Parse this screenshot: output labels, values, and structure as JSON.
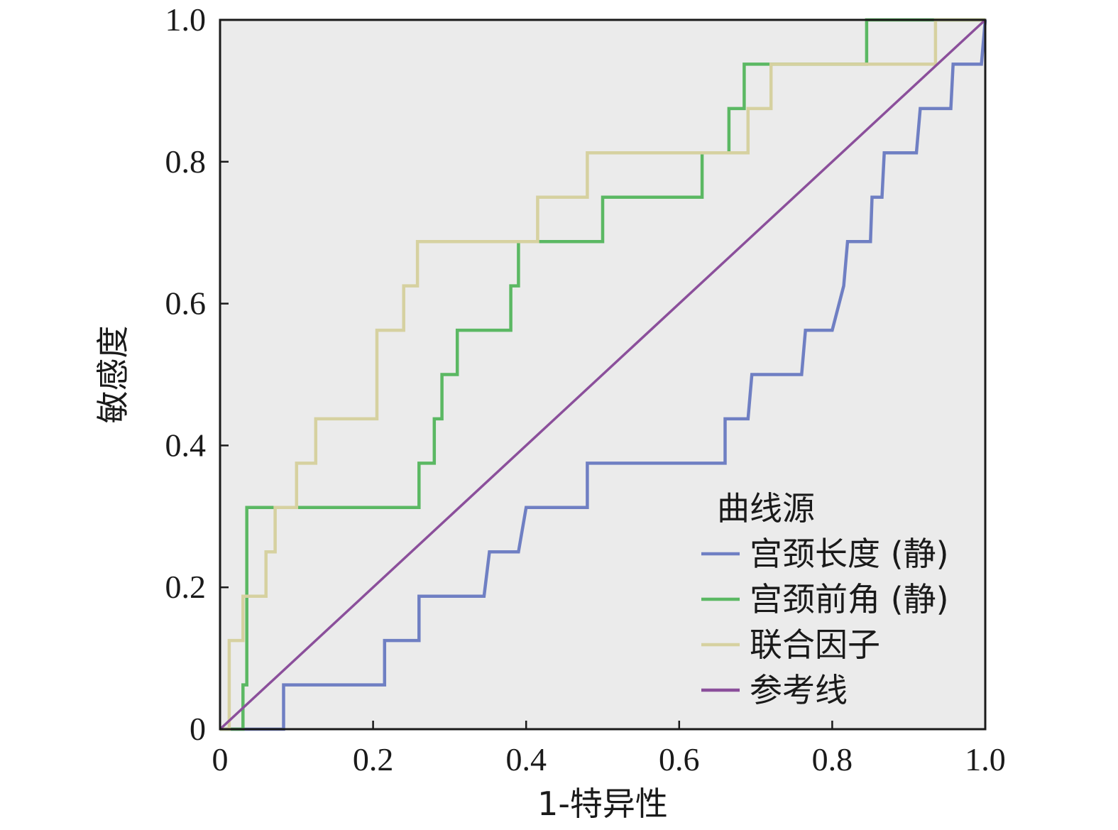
{
  "chart_data": {
    "type": "line",
    "title": "",
    "xlabel": "1-特异性",
    "ylabel": "敏感度",
    "xlim": [
      0,
      1
    ],
    "ylim": [
      0,
      1
    ],
    "x_ticks": [
      "0",
      "0.2",
      "0.4",
      "0.6",
      "0.8",
      "1.0"
    ],
    "y_ticks": [
      "0",
      "0.2",
      "0.4",
      "0.6",
      "0.8",
      "1.0"
    ],
    "grid": false,
    "plot_background": "#ebebeb",
    "legend": {
      "title": "曲线源",
      "placement": "bottom-right"
    },
    "series": [
      {
        "name": "宫颈长度 (静)",
        "color": "#6f7fc3",
        "x": [
          0,
          0.083,
          0.083,
          0.215,
          0.215,
          0.26,
          0.26,
          0.345,
          0.352,
          0.39,
          0.4,
          0.48,
          0.48,
          0.66,
          0.66,
          0.69,
          0.695,
          0.76,
          0.765,
          0.8,
          0.815,
          0.82,
          0.822,
          0.85,
          0.852,
          0.865,
          0.868,
          0.91,
          0.915,
          0.955,
          0.958,
          0.995,
          1.0
        ],
        "y": [
          0,
          0,
          0.0625,
          0.0625,
          0.125,
          0.125,
          0.1875,
          0.1875,
          0.25,
          0.25,
          0.3125,
          0.3125,
          0.375,
          0.375,
          0.4375,
          0.4375,
          0.5,
          0.5,
          0.5625,
          0.5625,
          0.625,
          0.6875,
          0.6875,
          0.6875,
          0.75,
          0.75,
          0.8125,
          0.8125,
          0.875,
          0.875,
          0.9375,
          0.9375,
          1.0
        ]
      },
      {
        "name": "宫颈前角 (静)",
        "color": "#5bb863",
        "x": [
          0,
          0.03,
          0.03,
          0.035,
          0.035,
          0.26,
          0.26,
          0.28,
          0.28,
          0.29,
          0.29,
          0.31,
          0.31,
          0.38,
          0.38,
          0.39,
          0.39,
          0.5,
          0.5,
          0.63,
          0.63,
          0.665,
          0.665,
          0.685,
          0.685,
          0.72,
          0.72,
          0.845,
          0.845,
          1.0
        ],
        "y": [
          0,
          0,
          0.0625,
          0.0625,
          0.3125,
          0.3125,
          0.375,
          0.375,
          0.4375,
          0.4375,
          0.5,
          0.5,
          0.5625,
          0.5625,
          0.625,
          0.625,
          0.6875,
          0.6875,
          0.75,
          0.75,
          0.8125,
          0.8125,
          0.875,
          0.875,
          0.9375,
          0.9375,
          0.9375,
          0.9375,
          1.0,
          1.0
        ]
      },
      {
        "name": "联合因子",
        "color": "#d6d1a0",
        "x": [
          0,
          0.012,
          0.012,
          0.03,
          0.03,
          0.06,
          0.06,
          0.072,
          0.072,
          0.1,
          0.1,
          0.125,
          0.125,
          0.205,
          0.205,
          0.24,
          0.24,
          0.258,
          0.258,
          0.415,
          0.415,
          0.48,
          0.48,
          0.69,
          0.69,
          0.72,
          0.72,
          0.935,
          0.935,
          1.0
        ],
        "y": [
          0,
          0,
          0.125,
          0.125,
          0.1875,
          0.1875,
          0.25,
          0.25,
          0.3125,
          0.3125,
          0.375,
          0.375,
          0.4375,
          0.4375,
          0.5625,
          0.5625,
          0.625,
          0.625,
          0.6875,
          0.6875,
          0.75,
          0.75,
          0.8125,
          0.8125,
          0.875,
          0.875,
          0.9375,
          0.9375,
          1.0,
          1.0
        ]
      },
      {
        "name": "参考线",
        "color": "#8b4f9b",
        "x": [
          0,
          1
        ],
        "y": [
          0,
          1
        ]
      }
    ]
  }
}
